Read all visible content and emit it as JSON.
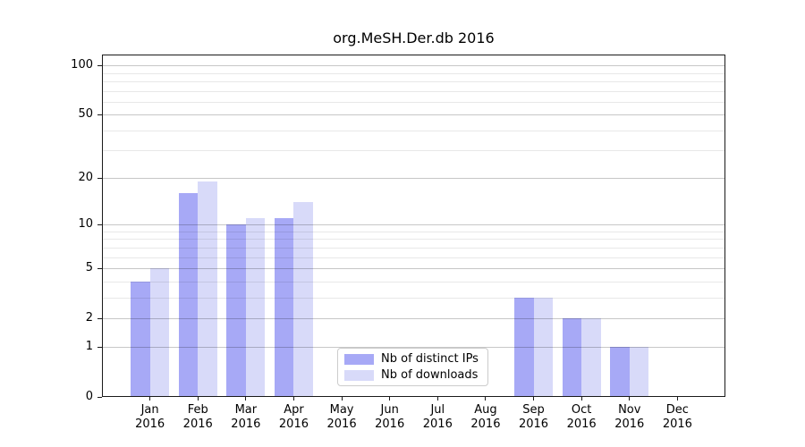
{
  "chart_data": {
    "type": "bar",
    "title": "org.MeSH.Der.db 2016",
    "categories": [
      "Jan",
      "Feb",
      "Mar",
      "Apr",
      "May",
      "Jun",
      "Jul",
      "Aug",
      "Sep",
      "Oct",
      "Nov",
      "Dec"
    ],
    "category_year_line": "2016",
    "series": [
      {
        "name": "Nb of distinct IPs",
        "color": "#a7a9f6",
        "values": [
          4,
          16,
          10,
          11,
          0,
          0,
          0,
          0,
          3,
          2,
          1,
          0
        ]
      },
      {
        "name": "Nb of downloads",
        "color": "#d8daf9",
        "values": [
          5,
          19,
          11,
          14,
          0,
          0,
          0,
          0,
          3,
          2,
          1,
          0
        ]
      }
    ],
    "y_axis": {
      "scale": "log1p",
      "tick_labels": [
        0,
        1,
        2,
        5,
        10,
        20,
        50,
        100
      ],
      "minor_gridlines": [
        3,
        4,
        6,
        7,
        8,
        9,
        30,
        40,
        60,
        70,
        80,
        90
      ],
      "ylim": [
        0,
        117
      ]
    },
    "xlabel": "",
    "ylabel": "",
    "grid": true,
    "legend_position": "lower center"
  }
}
